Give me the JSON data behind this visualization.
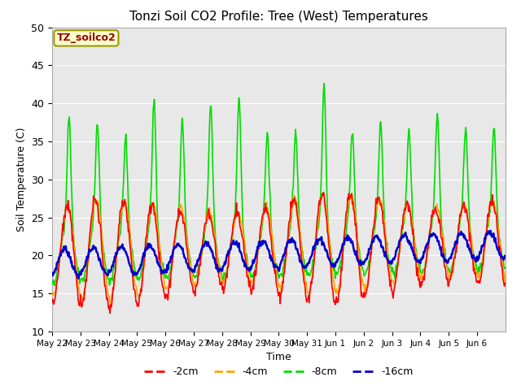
{
  "title": "Tonzi Soil CO2 Profile: Tree (West) Temperatures",
  "xlabel": "Time",
  "ylabel": "Soil Temperature (C)",
  "ylim": [
    10,
    50
  ],
  "legend_label": "TZ_soilco2",
  "legend_text_color": "#990000",
  "legend_box_color": "#ffffcc",
  "legend_box_edge": "#999900",
  "fig_bg": "#ffffff",
  "plot_bg": "#e8e8e8",
  "series": {
    "2cm": {
      "color": "#ff0000",
      "label": "-2cm",
      "lw": 1.2
    },
    "4cm": {
      "color": "#ffa500",
      "label": "-4cm",
      "lw": 1.2
    },
    "8cm": {
      "color": "#00dd00",
      "label": "-8cm",
      "lw": 1.2
    },
    "16cm": {
      "color": "#0000cc",
      "label": "-16cm",
      "lw": 1.8
    }
  },
  "tick_labels": [
    "May 22",
    "May 23",
    "May 24",
    "May 25",
    "May 26",
    "May 27",
    "May 28",
    "May 29",
    "May 30",
    "May 31",
    "Jun 1",
    "Jun 2",
    "Jun 3",
    "Jun 4",
    "Jun 5",
    "Jun 6"
  ],
  "yticks": [
    10,
    15,
    20,
    25,
    30,
    35,
    40,
    45,
    50
  ],
  "grid_color": "#ffffff"
}
